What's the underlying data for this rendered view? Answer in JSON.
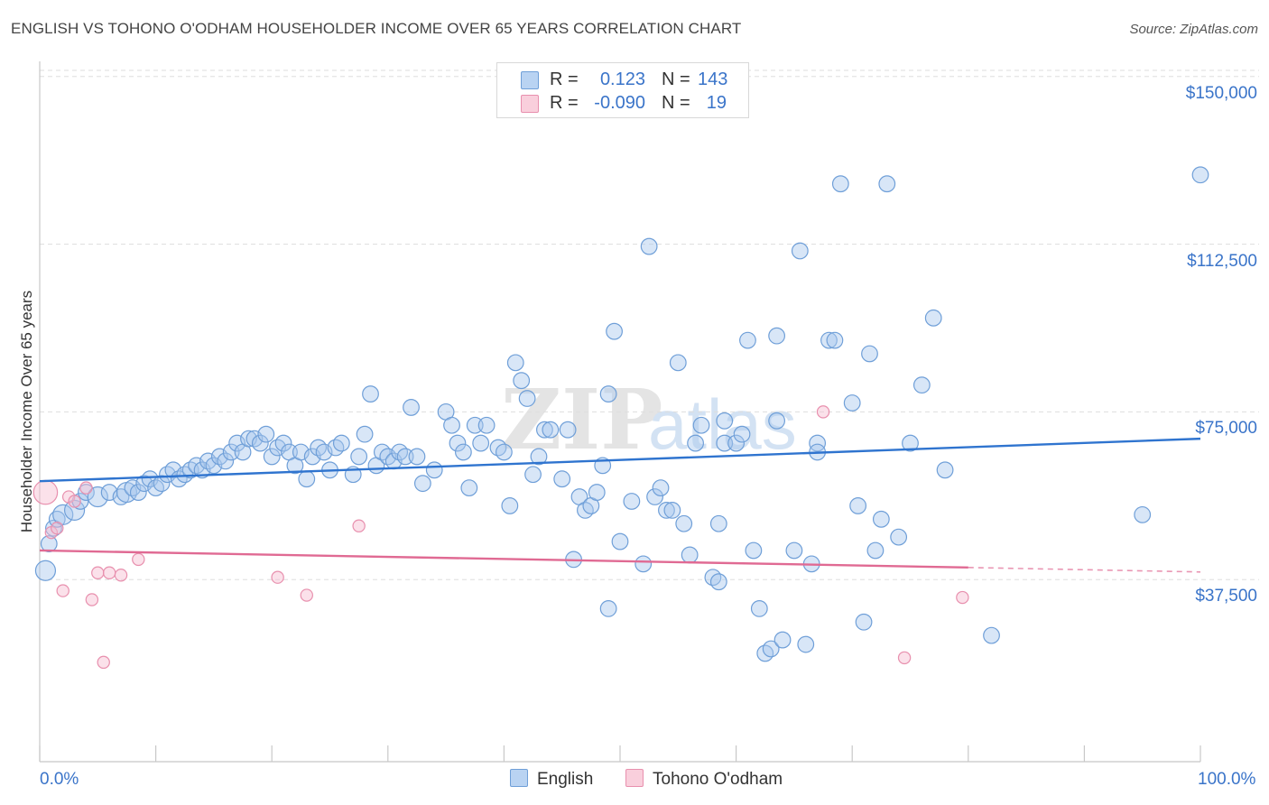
{
  "title": "ENGLISH VS TOHONO O'ODHAM HOUSEHOLDER INCOME OVER 65 YEARS CORRELATION CHART",
  "source": "Source: ZipAtlas.com",
  "watermark": {
    "zip": "ZIP",
    "atlas": "atlas"
  },
  "legend": {
    "english": {
      "r_label": "R =",
      "r_value": "0.123",
      "n_label": "N =",
      "n_value": "143"
    },
    "tohono": {
      "r_label": "R =",
      "r_value": "-0.090",
      "n_label": "N =",
      "n_value": "19"
    }
  },
  "bottom_legend": {
    "english": "English",
    "tohono": "Tohono O'odham"
  },
  "colors": {
    "english_fill": "#a9c8ee",
    "english_stroke": "#6f9fd8",
    "english_line": "#2f74cf",
    "tohono_fill": "#f6bdd0",
    "tohono_stroke": "#e890ae",
    "tohono_line": "#e06a93",
    "tick_text": "#3a74c9",
    "grid": "#dddddd"
  },
  "chart_data": {
    "type": "scatter",
    "title": "ENGLISH VS TOHONO O'ODHAM HOUSEHOLDER INCOME OVER 65 YEARS CORRELATION CHART",
    "xlabel": "",
    "ylabel": "Householder Income Over 65 years",
    "xlim": [
      0,
      100
    ],
    "ylim": [
      0,
      155000
    ],
    "x_tick_labels": [
      "0.0%",
      "100.0%"
    ],
    "y_ticks": [
      37500,
      75000,
      112500,
      150000
    ],
    "y_tick_labels": [
      "$37,500",
      "$75,000",
      "$112,500",
      "$150,000"
    ],
    "grid": "horizontal dashed",
    "legend_position": "top-center",
    "series": [
      {
        "name": "English",
        "R": 0.123,
        "N": 143,
        "trend": [
          [
            0,
            59500
          ],
          [
            100,
            69000
          ]
        ],
        "points": [
          [
            0.5,
            39500,
            5
          ],
          [
            0.8,
            45500,
            4
          ],
          [
            1.2,
            49000,
            4
          ],
          [
            1.5,
            51000,
            4
          ],
          [
            2,
            52000,
            5
          ],
          [
            3,
            53000,
            5
          ],
          [
            3.5,
            55000,
            4
          ],
          [
            4,
            57000,
            4
          ],
          [
            5,
            56000,
            5
          ],
          [
            6,
            57000,
            4
          ],
          [
            7,
            56000,
            4
          ],
          [
            7.5,
            57000,
            5
          ],
          [
            8,
            58000,
            4
          ],
          [
            8.5,
            57000,
            4
          ],
          [
            9,
            59000,
            4
          ],
          [
            9.5,
            60000,
            4
          ],
          [
            10,
            58000,
            4
          ],
          [
            10.5,
            59000,
            4
          ],
          [
            11,
            61000,
            4
          ],
          [
            11.5,
            62000,
            4
          ],
          [
            12,
            60000,
            4
          ],
          [
            12.5,
            61000,
            4
          ],
          [
            13,
            62000,
            4
          ],
          [
            13.5,
            63000,
            4
          ],
          [
            14,
            62000,
            4
          ],
          [
            14.5,
            64000,
            4
          ],
          [
            15,
            63000,
            4
          ],
          [
            15.5,
            65000,
            4
          ],
          [
            16,
            64000,
            4
          ],
          [
            16.5,
            66000,
            4
          ],
          [
            17,
            68000,
            4
          ],
          [
            17.5,
            66000,
            4
          ],
          [
            18,
            69000,
            4
          ],
          [
            18.5,
            69000,
            4
          ],
          [
            19,
            68000,
            4
          ],
          [
            19.5,
            70000,
            4
          ],
          [
            20,
            65000,
            4
          ],
          [
            20.5,
            67000,
            4
          ],
          [
            21,
            68000,
            4
          ],
          [
            21.5,
            66000,
            4
          ],
          [
            22,
            63000,
            4
          ],
          [
            23,
            60000,
            4
          ],
          [
            22.5,
            66000,
            4
          ],
          [
            23.5,
            65000,
            4
          ],
          [
            24,
            67000,
            4
          ],
          [
            24.5,
            66000,
            4
          ],
          [
            25,
            62000,
            4
          ],
          [
            25.5,
            67000,
            4
          ],
          [
            26,
            68000,
            4
          ],
          [
            27,
            61000,
            4
          ],
          [
            27.5,
            65000,
            4
          ],
          [
            28,
            70000,
            4
          ],
          [
            28.5,
            79000,
            4
          ],
          [
            29,
            63000,
            4
          ],
          [
            29.5,
            66000,
            4
          ],
          [
            30,
            65000,
            4
          ],
          [
            30.5,
            64000,
            4
          ],
          [
            31,
            66000,
            4
          ],
          [
            31.5,
            65000,
            4
          ],
          [
            32,
            76000,
            4
          ],
          [
            32.5,
            65000,
            4
          ],
          [
            33,
            59000,
            4
          ],
          [
            34,
            62000,
            4
          ],
          [
            35,
            75000,
            4
          ],
          [
            35.5,
            72000,
            4
          ],
          [
            36,
            68000,
            4
          ],
          [
            36.5,
            66000,
            4
          ],
          [
            37,
            58000,
            4
          ],
          [
            37.5,
            72000,
            4
          ],
          [
            38,
            68000,
            4
          ],
          [
            38.5,
            72000,
            4
          ],
          [
            39.5,
            67000,
            4
          ],
          [
            40,
            66000,
            4
          ],
          [
            40.5,
            54000,
            4
          ],
          [
            41,
            86000,
            4
          ],
          [
            41.5,
            82000,
            4
          ],
          [
            42,
            78000,
            4
          ],
          [
            42.5,
            61000,
            4
          ],
          [
            43,
            65000,
            4
          ],
          [
            43.5,
            71000,
            4
          ],
          [
            44,
            71000,
            4
          ],
          [
            45,
            60000,
            4
          ],
          [
            45.5,
            71000,
            4
          ],
          [
            46,
            42000,
            4
          ],
          [
            46.5,
            56000,
            4
          ],
          [
            47,
            53000,
            4
          ],
          [
            47.5,
            54000,
            4
          ],
          [
            48,
            57000,
            4
          ],
          [
            48.5,
            63000,
            4
          ],
          [
            49,
            79000,
            4
          ],
          [
            49,
            31000,
            4
          ],
          [
            49.5,
            93000,
            4
          ],
          [
            50,
            46000,
            4
          ],
          [
            51,
            55000,
            4
          ],
          [
            52,
            41000,
            4
          ],
          [
            52.5,
            112000,
            4
          ],
          [
            53,
            56000,
            4
          ],
          [
            53.5,
            58000,
            4
          ],
          [
            54,
            53000,
            4
          ],
          [
            54.5,
            53000,
            4
          ],
          [
            55,
            86000,
            4
          ],
          [
            55.5,
            50000,
            4
          ],
          [
            56,
            43000,
            4
          ],
          [
            56.5,
            68000,
            4
          ],
          [
            57,
            72000,
            4
          ],
          [
            58,
            38000,
            4
          ],
          [
            58.5,
            37000,
            4
          ],
          [
            58.5,
            50000,
            4
          ],
          [
            59,
            68000,
            4
          ],
          [
            59,
            73000,
            4
          ],
          [
            60,
            68000,
            4
          ],
          [
            60.5,
            70000,
            4
          ],
          [
            61,
            91000,
            4
          ],
          [
            61.5,
            44000,
            4
          ],
          [
            62,
            31000,
            4
          ],
          [
            62.5,
            21000,
            4
          ],
          [
            63,
            22000,
            4
          ],
          [
            63.5,
            92000,
            4
          ],
          [
            63.5,
            73000,
            4
          ],
          [
            64,
            24000,
            4
          ],
          [
            65,
            44000,
            4
          ],
          [
            65.5,
            111000,
            4
          ],
          [
            66,
            23000,
            4
          ],
          [
            66.5,
            41000,
            4
          ],
          [
            67,
            68000,
            4
          ],
          [
            67,
            66000,
            4
          ],
          [
            68,
            91000,
            4
          ],
          [
            68.5,
            91000,
            4
          ],
          [
            69,
            126000,
            4
          ],
          [
            70,
            77000,
            4
          ],
          [
            70.5,
            54000,
            4
          ],
          [
            71,
            28000,
            4
          ],
          [
            71.5,
            88000,
            4
          ],
          [
            72,
            44000,
            4
          ],
          [
            72.5,
            51000,
            4
          ],
          [
            73,
            126000,
            4
          ],
          [
            74,
            47000,
            4
          ],
          [
            75,
            68000,
            4
          ],
          [
            76,
            81000,
            4
          ],
          [
            77,
            96000,
            4
          ],
          [
            78,
            62000,
            4
          ],
          [
            82,
            25000,
            4
          ],
          [
            95,
            52000,
            4
          ],
          [
            100,
            128000,
            4
          ]
        ]
      },
      {
        "name": "Tohono O'odham",
        "R": -0.09,
        "N": 19,
        "trend": [
          [
            0,
            44000
          ],
          [
            80,
            40200
          ]
        ],
        "trend_dashed_to": [
          100,
          39200
        ],
        "points": [
          [
            0.5,
            57000,
            6
          ],
          [
            1,
            48000,
            3
          ],
          [
            1.5,
            49000,
            3
          ],
          [
            2,
            35000,
            3
          ],
          [
            2.5,
            56000,
            3
          ],
          [
            3,
            55000,
            3
          ],
          [
            4,
            58000,
            3
          ],
          [
            4.5,
            33000,
            3
          ],
          [
            5,
            39000,
            3
          ],
          [
            5.5,
            19000,
            3
          ],
          [
            6,
            39000,
            3
          ],
          [
            7,
            38500,
            3
          ],
          [
            8.5,
            42000,
            3
          ],
          [
            20.5,
            38000,
            3
          ],
          [
            23,
            34000,
            3
          ],
          [
            27.5,
            49500,
            3
          ],
          [
            67.5,
            75000,
            3
          ],
          [
            74.5,
            20000,
            3
          ],
          [
            79.5,
            33500,
            3
          ]
        ]
      }
    ]
  }
}
